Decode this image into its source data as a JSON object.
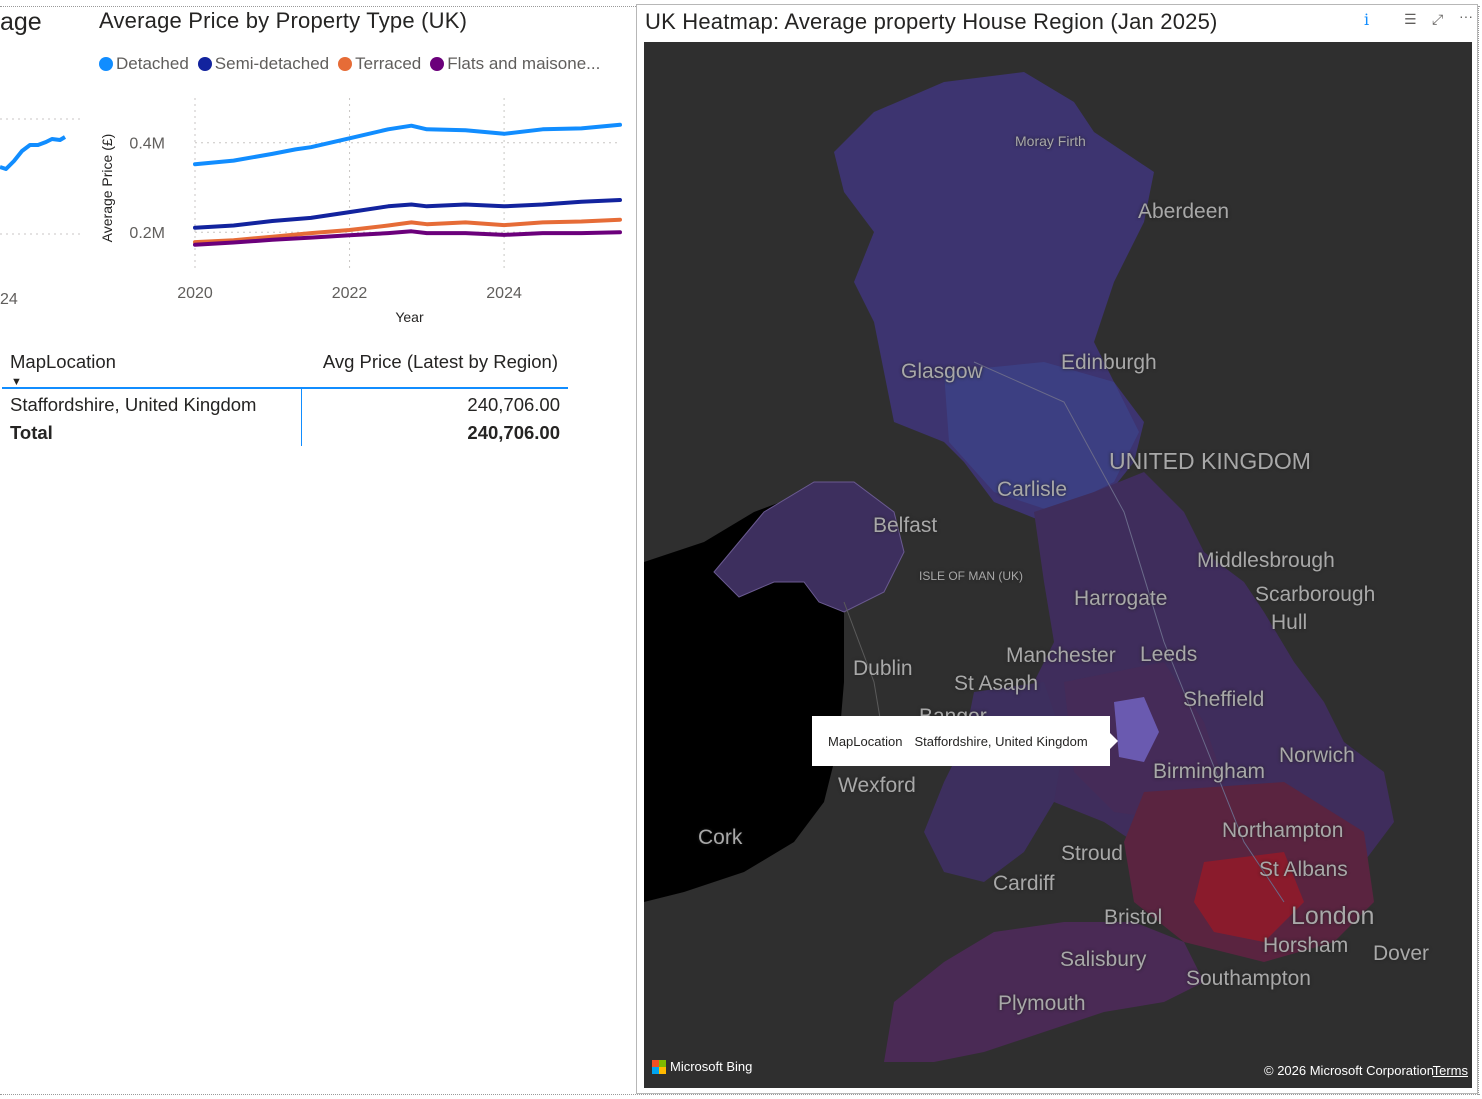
{
  "partial_visual": {
    "title": "age",
    "tick_label": "24"
  },
  "line_chart": {
    "title": "Average Price by Property Type (UK)",
    "legend": [
      {
        "label": "Detached",
        "color": "#118dff"
      },
      {
        "label": "Semi-detached",
        "color": "#12239e"
      },
      {
        "label": "Terraced",
        "color": "#e66c37"
      },
      {
        "label": "Flats and maisone...",
        "color": "#6b007b"
      }
    ]
  },
  "chart_data": {
    "type": "line",
    "title": "Average Price by Property Type (UK)",
    "xlabel": "Year",
    "ylabel": "Average Price (£)",
    "x_ticks": [
      2020,
      2022,
      2024
    ],
    "y_ticks": [
      200000,
      400000
    ],
    "y_tick_labels": [
      "0.2M",
      "0.4M"
    ],
    "xlim": [
      2020,
      2025.5
    ],
    "ylim": [
      120000,
      500000
    ],
    "grid": true,
    "legend_position": "top",
    "series": [
      {
        "name": "Detached",
        "color": "#118dff",
        "x": [
          2020,
          2020.5,
          2021,
          2021.3,
          2021.5,
          2022,
          2022.5,
          2022.8,
          2023,
          2023.5,
          2024,
          2024.5,
          2025,
          2025.5
        ],
        "values": [
          352000,
          360000,
          375000,
          385000,
          390000,
          410000,
          430000,
          438000,
          430000,
          428000,
          420000,
          430000,
          432000,
          440000
        ]
      },
      {
        "name": "Semi-detached",
        "color": "#12239e",
        "x": [
          2020,
          2020.5,
          2021,
          2021.5,
          2022,
          2022.5,
          2022.8,
          2023,
          2023.5,
          2024,
          2024.5,
          2025,
          2025.5
        ],
        "values": [
          210000,
          215000,
          225000,
          232000,
          245000,
          258000,
          262000,
          258000,
          262000,
          258000,
          262000,
          268000,
          272000
        ]
      },
      {
        "name": "Terraced",
        "color": "#e66c37",
        "x": [
          2020,
          2020.5,
          2021,
          2021.5,
          2022,
          2022.5,
          2022.8,
          2023,
          2023.5,
          2024,
          2024.5,
          2025,
          2025.5
        ],
        "values": [
          178000,
          182000,
          190000,
          198000,
          205000,
          215000,
          222000,
          218000,
          222000,
          216000,
          222000,
          224000,
          228000
        ]
      },
      {
        "name": "Flats and maisone...",
        "color": "#6b007b",
        "x": [
          2020,
          2020.5,
          2021,
          2021.5,
          2022,
          2022.5,
          2022.8,
          2023,
          2023.5,
          2024,
          2024.5,
          2025,
          2025.5
        ],
        "values": [
          172000,
          177000,
          183000,
          188000,
          193000,
          198000,
          202000,
          198000,
          198000,
          194000,
          198000,
          198000,
          200000
        ]
      }
    ]
  },
  "table": {
    "columns": [
      "MapLocation",
      "Avg Price (Latest by Region)"
    ],
    "rows": [
      {
        "location": "Staffordshire, United Kingdom",
        "price": "240,706.00"
      }
    ],
    "total_label": "Total",
    "total_value": "240,706.00"
  },
  "map_visual": {
    "title": "UK Heatmap: Average property House Region (Jan 2025)",
    "info_icon": "info-icon",
    "header_icons": [
      "filter-icon",
      "focus-mode-icon",
      "more-options-icon"
    ],
    "labels": {
      "moray_firth": "Moray Firth",
      "aberdeen": "Aberdeen",
      "glasgow": "Glasgow",
      "edinburgh": "Edinburgh",
      "united_kingdom": "UNITED KINGDOM",
      "carlisle": "Carlisle",
      "belfast": "Belfast",
      "isle_of_man": "ISLE OF MAN (UK)",
      "middlesbrough": "Middlesbrough",
      "scarborough": "Scarborough",
      "hull": "Hull",
      "harrogate": "Harrogate",
      "dublin": "Dublin",
      "manchester": "Manchester",
      "leeds": "Leeds",
      "st_asaph": "St Asaph",
      "sheffield": "Sheffield",
      "bangor": "Bangor",
      "norwich": "Norwich",
      "birmingham": "Birmingham",
      "wexford": "Wexford",
      "northampton": "Northampton",
      "cork": "Cork",
      "stroud": "Stroud",
      "st_albans": "St Albans",
      "cardiff": "Cardiff",
      "london": "London",
      "bristol": "Bristol",
      "horsham": "Horsham",
      "dover": "Dover",
      "salisbury": "Salisbury",
      "southampton": "Southampton",
      "plymouth": "Plymouth"
    },
    "tooltip": {
      "field": "MapLocation",
      "value": "Staffordshire, United Kingdom"
    },
    "attribution": {
      "logo_text": "Microsoft Bing",
      "copyright": "© 2026 Microsoft Corporation",
      "terms": "Terms"
    }
  }
}
